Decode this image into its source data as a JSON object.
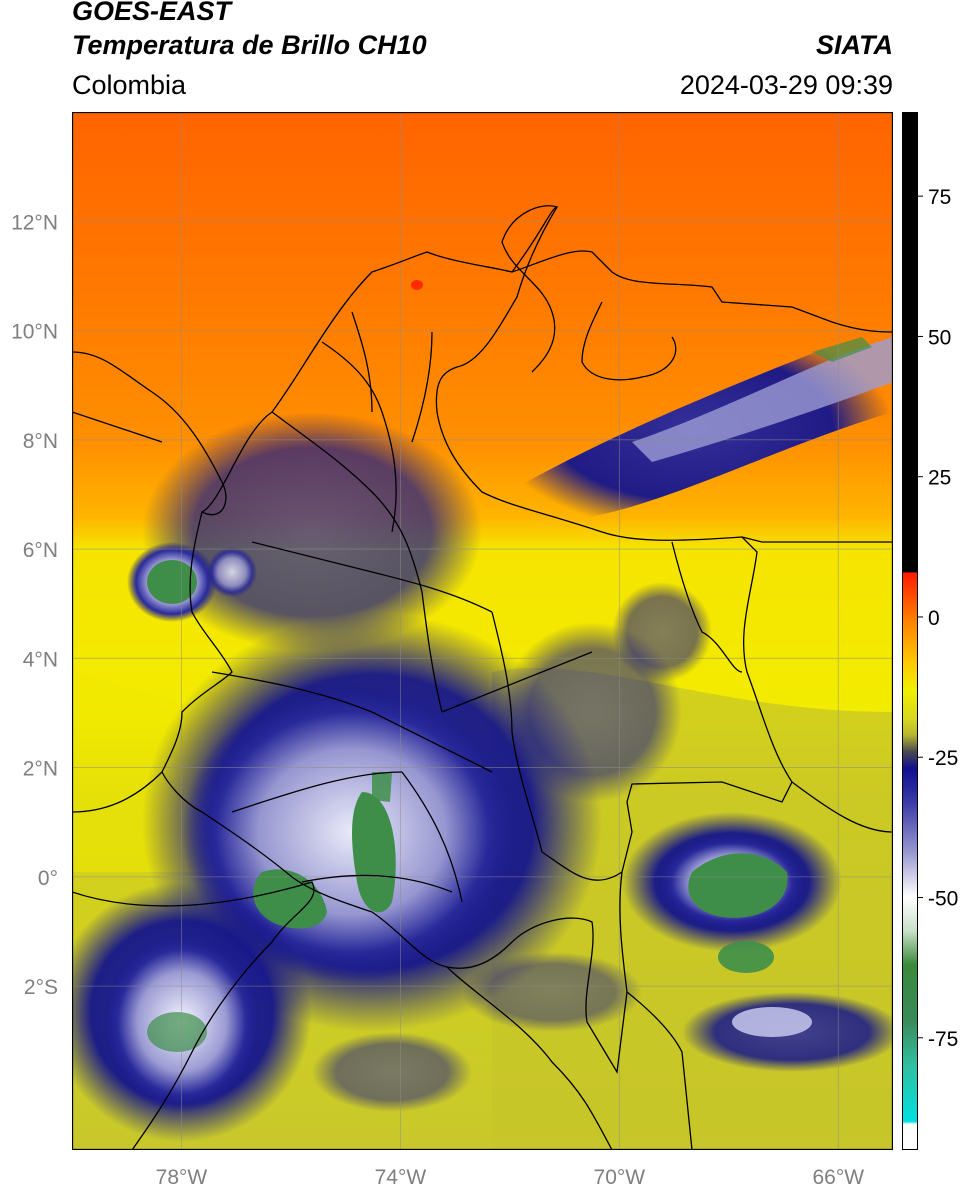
{
  "header": {
    "satellite": "GOES-EAST",
    "product": "Temperatura de Brillo CH10",
    "region": "Colombia",
    "org": "SIATA",
    "datetime": "2024-03-29 09:39"
  },
  "map": {
    "lon_range": [
      -80,
      -65
    ],
    "lat_range": [
      -5,
      14
    ],
    "lon_ticks": [
      {
        "value": -78,
        "label": "78°W"
      },
      {
        "value": -74,
        "label": "74°W"
      },
      {
        "value": -70,
        "label": "70°W"
      },
      {
        "value": -66,
        "label": "66°W"
      }
    ],
    "lat_ticks": [
      {
        "value": 12,
        "label": "12°N"
      },
      {
        "value": 10,
        "label": "10°N"
      },
      {
        "value": 8,
        "label": "8°N"
      },
      {
        "value": 6,
        "label": "6°N"
      },
      {
        "value": 4,
        "label": "4°N"
      },
      {
        "value": 2,
        "label": "2°N"
      },
      {
        "value": 0,
        "label": "0°"
      },
      {
        "value": -2,
        "label": "2°S"
      }
    ],
    "grid": true
  },
  "colorbar": {
    "range": [
      -95,
      90
    ],
    "ticks": [
      {
        "value": 75,
        "label": "75"
      },
      {
        "value": 50,
        "label": "50"
      },
      {
        "value": 25,
        "label": "25"
      },
      {
        "value": 0,
        "label": "0"
      },
      {
        "value": -25,
        "label": "-25"
      },
      {
        "value": -50,
        "label": "-50"
      },
      {
        "value": -75,
        "label": "-75"
      }
    ],
    "stops": [
      {
        "value": 90,
        "color": "#000000"
      },
      {
        "value": 8,
        "color": "#000000"
      },
      {
        "value": 7.9,
        "color": "#ff1a00"
      },
      {
        "value": 0,
        "color": "#ff7a00"
      },
      {
        "value": -8,
        "color": "#ffc800"
      },
      {
        "value": -13,
        "color": "#f0f000"
      },
      {
        "value": -18,
        "color": "#d8d820"
      },
      {
        "value": -21,
        "color": "#b8b830"
      },
      {
        "value": -24,
        "color": "#4a4a50"
      },
      {
        "value": -27,
        "color": "#101090"
      },
      {
        "value": -33,
        "color": "#3a3aa8"
      },
      {
        "value": -42,
        "color": "#9898d0"
      },
      {
        "value": -50,
        "color": "#ffffff"
      },
      {
        "value": -56,
        "color": "#c8e0c8"
      },
      {
        "value": -62,
        "color": "#3a8a3a"
      },
      {
        "value": -72,
        "color": "#3a8a5a"
      },
      {
        "value": -80,
        "color": "#30c0a0"
      },
      {
        "value": -90,
        "color": "#00e0e0"
      },
      {
        "value": -90.5,
        "color": "#ffffff"
      },
      {
        "value": -95,
        "color": "#ffffff"
      }
    ]
  },
  "palette": {
    "warm_sea": "#ff6a00",
    "warm_sea2": "#ff9000",
    "land_yellow": "#f2ec00",
    "land_olive": "#c8c828",
    "cloud_navy": "#14148c",
    "cloud_white": "#f4f4ff",
    "cloud_green": "#3e8e4a",
    "border": "#000000"
  }
}
